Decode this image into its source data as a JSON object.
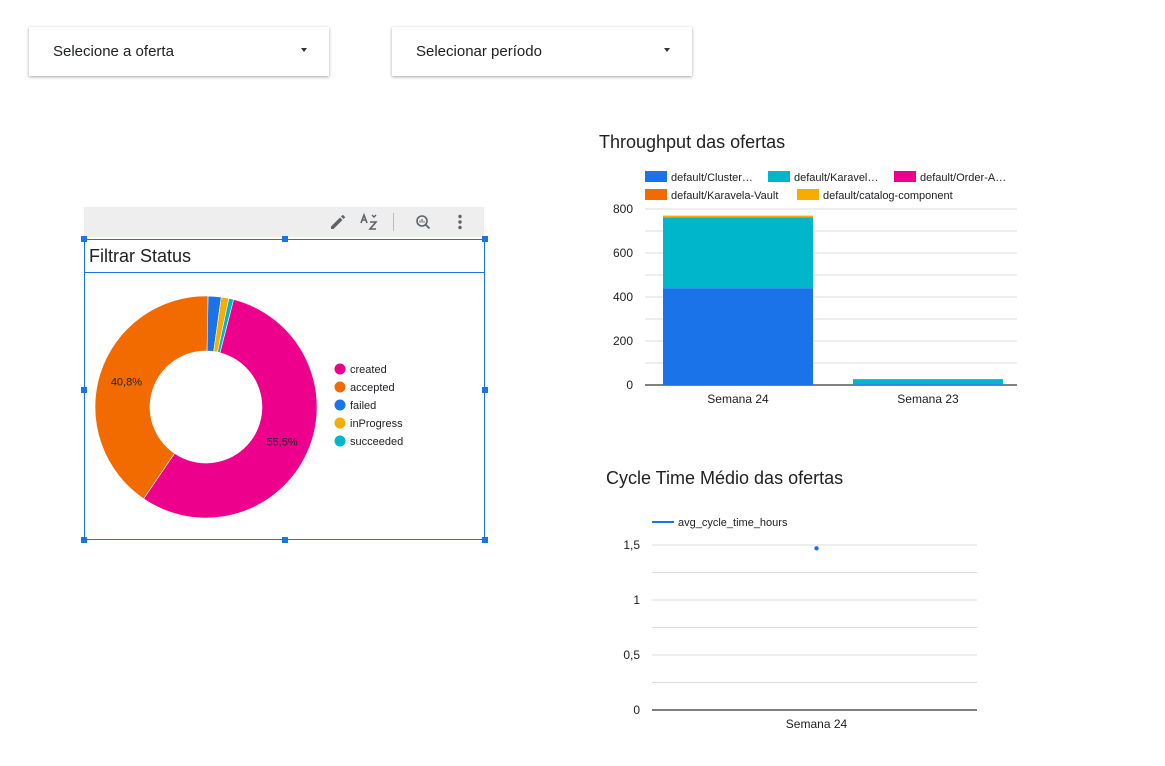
{
  "filters": {
    "offer": {
      "label": "Selecione a oferta"
    },
    "period": {
      "label": "Selecionar período"
    }
  },
  "toolbar": {
    "icons": [
      "pencil-icon",
      "sort-az-icon",
      "zoom-icon",
      "more-vert-icon"
    ]
  },
  "status_widget": {
    "title": "Filtrar Status"
  },
  "chart_data": [
    {
      "type": "pie",
      "title": "Filtrar Status",
      "donut": true,
      "legend_position": "right",
      "slices": [
        {
          "name": "created",
          "value": 55.5,
          "color": "#ec008c",
          "label": "55,5%"
        },
        {
          "name": "accepted",
          "value": 40.8,
          "color": "#f26b00",
          "label": "40,8%"
        },
        {
          "name": "failed",
          "value": 1.9,
          "color": "#1a73e8",
          "label": ""
        },
        {
          "name": "inProgress",
          "value": 1.1,
          "color": "#f9ab00",
          "label": ""
        },
        {
          "name": "succeeded",
          "value": 0.7,
          "color": "#00b6cb",
          "label": ""
        }
      ]
    },
    {
      "type": "bar",
      "stacked": true,
      "title": "Throughput das ofertas",
      "categories": [
        "Semana 24",
        "Semana 23"
      ],
      "series": [
        {
          "name": "default/Cluster…",
          "color": "#1a73e8",
          "values": [
            440,
            4
          ]
        },
        {
          "name": "default/Karavel…",
          "color": "#00b6cb",
          "values": [
            322,
            20
          ]
        },
        {
          "name": "default/Order-A…",
          "color": "#ec008c",
          "values": [
            0,
            2
          ]
        },
        {
          "name": "default/Karavela-Vault",
          "color": "#f26b00",
          "values": [
            0,
            1
          ]
        },
        {
          "name": "default/catalog-component",
          "color": "#f9ab00",
          "values": [
            8,
            0
          ]
        }
      ],
      "ylim": [
        0,
        800
      ],
      "yticks": [
        0,
        200,
        400,
        600,
        800
      ],
      "grid": true,
      "legend_position": "top"
    },
    {
      "type": "scatter",
      "title": "Cycle Time Médio das ofertas",
      "categories": [
        "Semana 24"
      ],
      "series": [
        {
          "name": "avg_cycle_time_hours",
          "color": "#1a73e8",
          "values": [
            1.47
          ]
        }
      ],
      "ylim": [
        0,
        1.5
      ],
      "yticks": [
        {
          "value": 0,
          "label": "0"
        },
        {
          "value": 0.5,
          "label": "0,5"
        },
        {
          "value": 1,
          "label": "1"
        },
        {
          "value": 1.5,
          "label": "1,5"
        }
      ],
      "grid": true,
      "legend_position": "top"
    }
  ]
}
